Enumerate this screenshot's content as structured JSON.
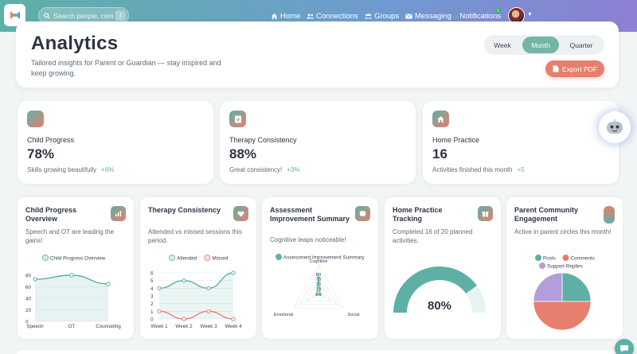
{
  "colors": {
    "teal": "#5eb0a6",
    "coral": "#e77f6f",
    "purple": "#b39ddb"
  },
  "nav": {
    "search_placeholder": "Search people, community...",
    "search_shortcut": "/",
    "items": [
      {
        "label": "Home",
        "icon": "home-icon"
      },
      {
        "label": "Connections",
        "icon": "users-icon"
      },
      {
        "label": "Groups",
        "icon": "group-icon"
      },
      {
        "label": "Messaging",
        "icon": "mail-icon"
      },
      {
        "label": "Notifications",
        "icon": "bell-icon"
      }
    ],
    "notification_count": "1"
  },
  "header": {
    "title": "Analytics",
    "subtitle": "Tailored insights for Parent or Guardian — stay inspired and keep growing.",
    "periods": [
      "Week",
      "Month",
      "Quarter"
    ],
    "active_period": "Month",
    "export_label": "Export PDF"
  },
  "stats": [
    {
      "label": "Child Progress",
      "value": "78%",
      "note": "Skills growing beautifully",
      "delta": "+6%",
      "icon": "gradient-square-icon"
    },
    {
      "label": "Therapy Consistency",
      "value": "88%",
      "note": "Great consistency!",
      "delta": "+3%",
      "icon": "clipboard-check-icon"
    },
    {
      "label": "Home Practice",
      "value": "16",
      "note": "Activities finished this month",
      "delta": "+5",
      "icon": "home-icon"
    }
  ],
  "cards": [
    {
      "title": "Child Progress Overview",
      "desc": "Speech and OT are leading the gains!",
      "icon": "chart-icon"
    },
    {
      "title": "Therapy Consistency",
      "desc": "Attended vs missed sessions this period.",
      "icon": "heart-icon"
    },
    {
      "title": "Assessment Improvement Summary",
      "desc": "Cognitive leaps noticeable!",
      "icon": "brain-icon"
    },
    {
      "title": "Home Practice Tracking",
      "desc": "Completed 16 of 20 planned activities.",
      "icon": "gift-icon"
    },
    {
      "title": "Parent Community Engagement",
      "desc": "Active in parent circles this month!",
      "icon": "gradient-square-icon"
    }
  ],
  "chart_data": [
    {
      "type": "area",
      "categories": [
        "Speech",
        "OT",
        "Counseling"
      ],
      "series": [
        {
          "name": "Child Progress Overview",
          "values": [
            73,
            80,
            65
          ]
        }
      ],
      "ylim": [
        0,
        80
      ],
      "yticks": [
        "0",
        "20",
        "40",
        "60",
        "80"
      ],
      "legend": "top",
      "grid": true
    },
    {
      "type": "line",
      "categories": [
        "Week 1",
        "Week 2",
        "Week 3",
        "Week 4"
      ],
      "series": [
        {
          "name": "Attended",
          "values": [
            4,
            5,
            4,
            6
          ]
        },
        {
          "name": "Missed",
          "values": [
            1,
            0,
            1,
            0
          ]
        }
      ],
      "ylim": [
        0,
        6
      ],
      "yticks": [
        "0",
        "1",
        "2",
        "3",
        "4",
        "5",
        "6"
      ],
      "legend": "top",
      "grid": true
    },
    {
      "type": "radar",
      "axes": [
        "Cognitive",
        "Social",
        "Emotional"
      ],
      "series": [
        {
          "name": "Assessment Improvement Summary",
          "values": [
            80,
            10,
            10
          ]
        }
      ],
      "rticks": [
        "74",
        "76",
        "78",
        "80"
      ],
      "legend": "top"
    },
    {
      "type": "gauge",
      "value": 80,
      "max": 100,
      "label": "80%"
    },
    {
      "type": "pie",
      "categories": [
        "Posts",
        "Comments",
        "Support Replies"
      ],
      "values": [
        25,
        50,
        25
      ],
      "legend": "top"
    }
  ]
}
